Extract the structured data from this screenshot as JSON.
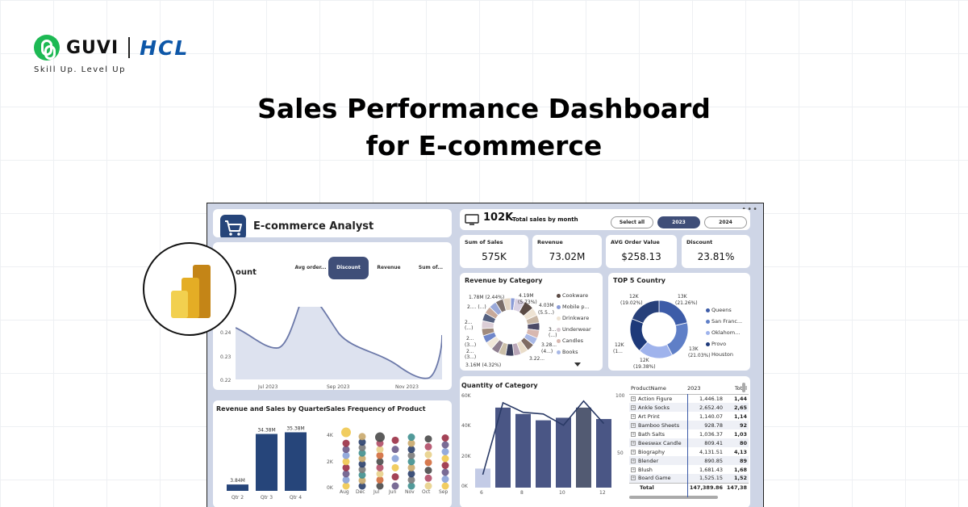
{
  "brand": {
    "guvi": "GUVI",
    "hcl": "HCL",
    "tagline": "Skill Up. Level Up"
  },
  "title": {
    "line1": "Sales Performance Dashboard",
    "line2": "for E-commerce"
  },
  "colors": {
    "navy": "#26457a",
    "slate": "#3f4e78",
    "periwinkle": "#8a9bd6",
    "brand_green": "#1db954",
    "hcl_blue": "#0d57a8"
  },
  "dashboard": {
    "header": {
      "title": "E-commerce Analyst",
      "icon": "shopping-cart-icon"
    },
    "trend": {
      "title_fragment": "ount",
      "tabs": [
        "Avg order...",
        "Discount",
        "Revenue",
        "Sum of..."
      ],
      "active_tab": "Discount",
      "y_ticks": [
        "0.24",
        "0.23",
        "0.22"
      ],
      "x_ticks": [
        "Jul 2023",
        "Sep 2023",
        "Nov 2023"
      ]
    },
    "top": {
      "value": "102K",
      "label": "Total sales by month",
      "buttons": [
        "Select all",
        "2023",
        "2024"
      ],
      "active_button": "2023"
    },
    "kpis": [
      {
        "label": "Sum of Sales",
        "value": "575K"
      },
      {
        "label": "Revenue",
        "value": "73.02M"
      },
      {
        "label": "AVG Order Value",
        "value": "$258.13"
      },
      {
        "label": "Discount",
        "value": "23.81%"
      }
    ],
    "revenue_category": {
      "title": "Revenue by Category",
      "legend": [
        "Cookware",
        "Mobile p...",
        "Drinkware",
        "Underwear",
        "Candles",
        "Books"
      ],
      "labels": [
        "1.78M (2.44%)",
        "2.... (...)",
        "2...",
        "(...)",
        "2...",
        "(3...)",
        "2...",
        "(3...)",
        "3.16M (4.32%)",
        "4.19M",
        "(5.73%)",
        "4.03M",
        "(5.5...)",
        "3...",
        "(...)",
        "3.28...",
        "(4...)",
        "3.22..."
      ]
    },
    "top_country": {
      "title": "TOP 5 Country",
      "legend": [
        "Queens",
        "San Franc...",
        "Oklahom...",
        "Provo",
        "Houston"
      ],
      "labels": {
        "a": "12K",
        "a2": "(19.02%)",
        "b": "13K",
        "b2": "(21.26%)",
        "c": "12K",
        "c2": "(1...",
        "d": "12K",
        "d2": "(19.38%)",
        "e": "13K",
        "e2": "(21.03%)"
      }
    },
    "quarter": {
      "title": "Revenue and Sales by Quarter",
      "categories": [
        "Qtr 2",
        "Qtr 3",
        "Qtr 4"
      ],
      "values": [
        "3.84M",
        "34.38M",
        "35.38M"
      ]
    },
    "frequency": {
      "title": "Sales Frequency of Product",
      "y_ticks": [
        "4K",
        "2K",
        "0K"
      ],
      "x_ticks": [
        "Aug",
        "Dec",
        "Jul",
        "Jun",
        "Nov",
        "Oct",
        "Sep"
      ]
    },
    "quantity": {
      "title": "Quantity of Category",
      "y_left": [
        "60K",
        "40K",
        "20K",
        "0K"
      ],
      "y_right": [
        "100",
        "50"
      ],
      "x_ticks": [
        "6",
        "8",
        "10",
        "12"
      ]
    },
    "product_table": {
      "headers": [
        "ProductName",
        "2023",
        "Total"
      ],
      "rows": [
        {
          "name": "Action Figure",
          "y2023": "1,446.18",
          "total": "1,44"
        },
        {
          "name": "Ankle Socks",
          "y2023": "2,652.40",
          "total": "2,65"
        },
        {
          "name": "Art Print",
          "y2023": "1,140.07",
          "total": "1,14"
        },
        {
          "name": "Bamboo Sheets",
          "y2023": "928.78",
          "total": "92"
        },
        {
          "name": "Bath Salts",
          "y2023": "1,036.37",
          "total": "1,03"
        },
        {
          "name": "Beeswax Candle",
          "y2023": "809.41",
          "total": "80"
        },
        {
          "name": "Biography",
          "y2023": "4,131.51",
          "total": "4,13"
        },
        {
          "name": "Blender",
          "y2023": "890.85",
          "total": "89"
        },
        {
          "name": "Blush",
          "y2023": "1,681.43",
          "total": "1,68"
        },
        {
          "name": "Board Game",
          "y2023": "1,525.15",
          "total": "1,52"
        }
      ],
      "total_row": {
        "name": "Total",
        "y2023": "147,389.86",
        "total": "147,38"
      }
    }
  },
  "chart_data": [
    {
      "type": "bar",
      "title": "Revenue and Sales by Quarter",
      "categories": [
        "Qtr 2",
        "Qtr 3",
        "Qtr 4"
      ],
      "series": [
        {
          "values": [
            3.84,
            34.38,
            35.38
          ]
        }
      ],
      "ylim": [
        0,
        40
      ]
    },
    {
      "type": "bar",
      "title": "Quantity of Category",
      "x": [
        6,
        7,
        8,
        9,
        10,
        11,
        12
      ],
      "series": [
        {
          "values": [
            15000,
            63000,
            58000,
            53000,
            55000,
            63000,
            54000
          ]
        },
        {
          "type": "line",
          "values": [
            15,
            98,
            87,
            85,
            72,
            100,
            74
          ]
        }
      ],
      "ylim": [
        0,
        75000
      ],
      "y2lim": [
        0,
        110
      ]
    },
    {
      "type": "area",
      "x": [
        "Jun 2023",
        "Jul 2023",
        "Aug 2023",
        "Sep 2023",
        "Oct 2023",
        "Nov 2023",
        "Dec 2023"
      ],
      "values": [
        0.2415,
        0.2335,
        0.2538,
        0.2365,
        0.2325,
        0.2265,
        0.2415
      ],
      "ylim": [
        0.22,
        0.26
      ]
    },
    {
      "type": "pie",
      "title": "TOP 5 Country",
      "labels": [
        "Queens",
        "San Franc...",
        "Oklahom...",
        "Provo",
        "Houston"
      ],
      "values": [
        21.26,
        21.03,
        19.38,
        19.0,
        19.02
      ],
      "colors": [
        "#3d5ca8",
        "#5f7fc7",
        "#9fb3ec",
        "#1e3a7a",
        "#27407a"
      ]
    }
  ]
}
